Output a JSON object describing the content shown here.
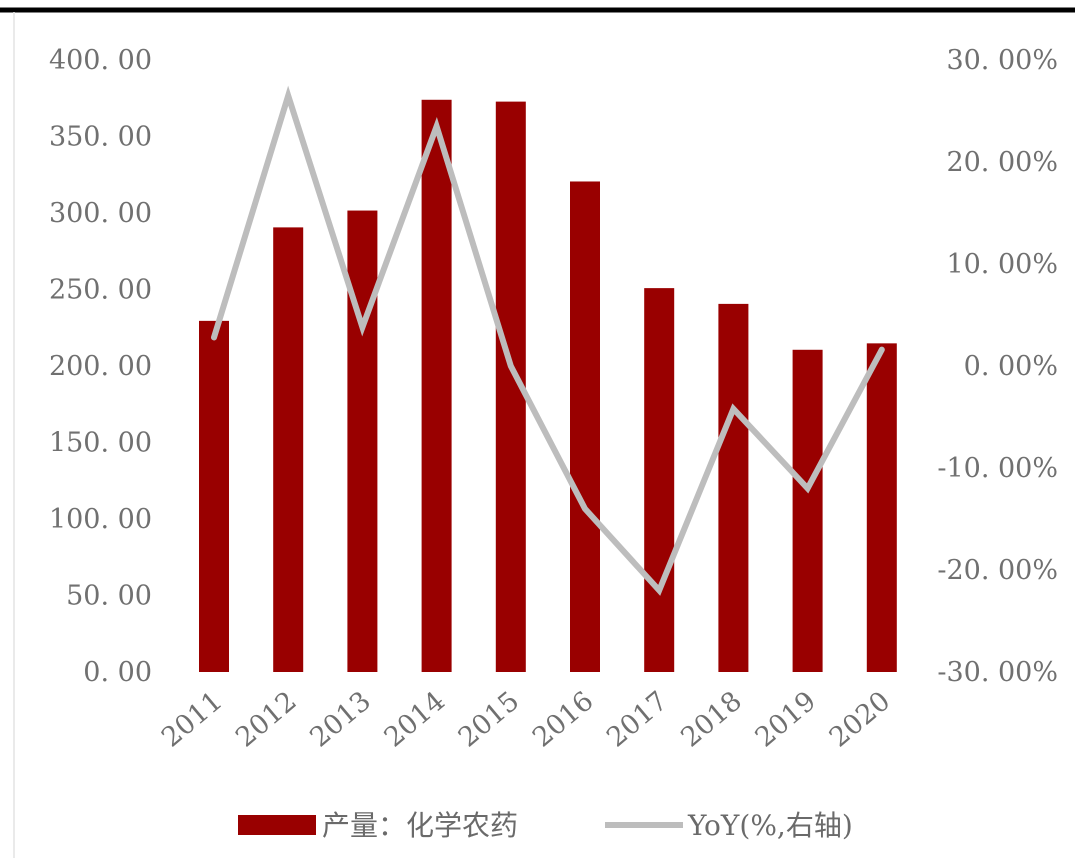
{
  "chart_data": {
    "type": "bar",
    "categories": [
      "2011",
      "2012",
      "2013",
      "2014",
      "2015",
      "2016",
      "2017",
      "2018",
      "2019",
      "2020"
    ],
    "series": [
      {
        "name": "产量：化学农药",
        "type": "bar",
        "axis": "left",
        "values": [
          229.5,
          290.6,
          301.6,
          374.0,
          372.8,
          320.6,
          250.9,
          240.6,
          210.6,
          214.8
        ]
      },
      {
        "name": "YoY(%,右轴)",
        "type": "line",
        "axis": "right",
        "values": [
          2.8,
          26.5,
          3.8,
          23.5,
          0.0,
          -14.0,
          -22.0,
          -4.2,
          -12.0,
          1.6
        ]
      }
    ],
    "y_left": {
      "ylim": [
        0,
        400
      ],
      "ticks": [
        "0. 00",
        "50. 00",
        "100. 00",
        "150. 00",
        "200. 00",
        "250. 00",
        "300. 00",
        "350. 00",
        "400. 00"
      ]
    },
    "y_right": {
      "ylim": [
        -30,
        30
      ],
      "ticks": [
        "-30. 00%",
        "-20. 00%",
        "-10. 00%",
        "0. 00%",
        "10. 00%",
        "20. 00%",
        "30. 00%"
      ]
    },
    "colors": {
      "bar": "#990000",
      "line": "#bdbdbd",
      "top_border": "#000000"
    },
    "legend": {
      "position": "bottom",
      "items": [
        "产量：化学农药",
        "YoY(%,右轴)"
      ]
    },
    "grid": false
  }
}
